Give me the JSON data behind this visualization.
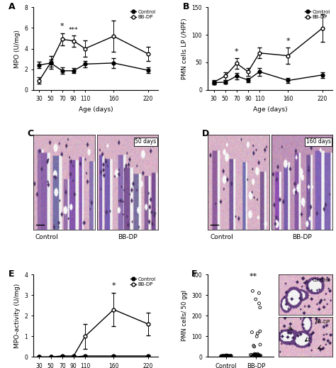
{
  "panel_A": {
    "label": "A",
    "ages": [
      30,
      50,
      70,
      90,
      110,
      160,
      220
    ],
    "control_mean": [
      2.4,
      2.6,
      1.85,
      1.85,
      2.5,
      2.6,
      1.9
    ],
    "control_err": [
      0.3,
      0.35,
      0.3,
      0.25,
      0.3,
      0.5,
      0.3
    ],
    "bbdp_mean": [
      0.9,
      2.65,
      4.9,
      4.75,
      4.0,
      5.2,
      3.5
    ],
    "bbdp_err": [
      0.3,
      0.6,
      0.6,
      0.55,
      0.8,
      1.5,
      0.7
    ],
    "ylabel": "MPO (U/mg)",
    "xlabel": "Age (days)",
    "ylim": [
      0,
      8
    ],
    "yticks": [
      0,
      2,
      4,
      6,
      8
    ],
    "sig_70": "*",
    "sig_90": "***"
  },
  "panel_B": {
    "label": "B",
    "ages": [
      30,
      50,
      70,
      90,
      110,
      160,
      220
    ],
    "control_mean": [
      13,
      14,
      25,
      18,
      33,
      17,
      27
    ],
    "control_err": [
      3,
      3,
      6,
      4,
      7,
      4,
      5
    ],
    "bbdp_mean": [
      14,
      25,
      48,
      33,
      67,
      62,
      112
    ],
    "bbdp_err": [
      3,
      7,
      10,
      7,
      10,
      15,
      25
    ],
    "ylabel": "PMN cells LP (/HPF)",
    "xlabel": "Age (days)",
    "ylim": [
      0,
      150
    ],
    "yticks": [
      0,
      50,
      100,
      150
    ],
    "sig_70": "*",
    "sig_160": "*"
  },
  "panel_E": {
    "label": "E",
    "ages": [
      30,
      50,
      70,
      90,
      110,
      160,
      220
    ],
    "control_mean": [
      0.0,
      0.0,
      0.0,
      0.0,
      0.05,
      0.05,
      0.05
    ],
    "control_err": [
      0.0,
      0.0,
      0.0,
      0.0,
      0.02,
      0.02,
      0.02
    ],
    "bbdp_mean": [
      0.0,
      0.0,
      0.05,
      0.05,
      1.0,
      2.3,
      1.6
    ],
    "bbdp_err": [
      0.0,
      0.0,
      0.02,
      0.05,
      0.6,
      0.8,
      0.55
    ],
    "ylabel": "MPO-activity (U/mg)",
    "xlabel": "Age (days)",
    "ylim": [
      0,
      4
    ],
    "yticks": [
      0,
      1,
      2,
      3,
      4
    ],
    "sig_160": "*"
  },
  "panel_F": {
    "label": "F",
    "ylabel": "PMN cells/ 50 ggl",
    "ylim": [
      0,
      400
    ],
    "yticks": [
      0,
      100,
      200,
      300,
      400
    ],
    "control_dots": [
      2,
      3,
      4,
      5,
      6,
      7,
      8,
      5,
      4,
      3,
      2,
      6,
      5,
      4,
      3,
      5,
      6,
      7,
      4,
      3,
      8,
      5,
      6,
      4,
      3,
      2,
      5,
      4,
      6,
      7
    ],
    "bbdp_dots_small": [
      5,
      8,
      10,
      12,
      15,
      8,
      6,
      10,
      12,
      5,
      8,
      9,
      15,
      10,
      8,
      6,
      12,
      8,
      5,
      10,
      12,
      9,
      7,
      6,
      8,
      10,
      11,
      7,
      9,
      6
    ],
    "bbdp_dots_large": [
      125,
      115,
      120,
      50,
      100,
      55,
      60,
      240,
      260,
      280,
      310,
      320
    ],
    "sig": "**"
  }
}
